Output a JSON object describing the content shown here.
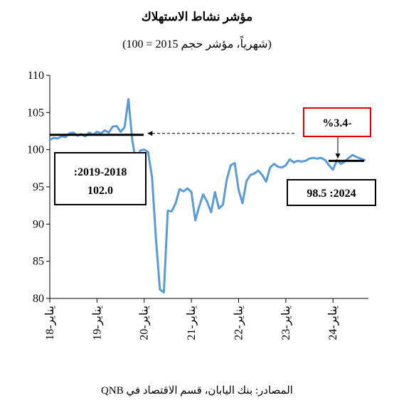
{
  "chart_data": {
    "type": "line",
    "title": "مؤشر نشاط الاستهلاك",
    "subtitle": "(شهرياً، مؤشر حجم 2015 = 100)",
    "source": "المصادر: بنك اليابان، قسم الاقتصاد في QNB",
    "ylim": [
      80,
      110
    ],
    "xlim": [
      2018.0,
      2024.75
    ],
    "y_ticks": [
      "110",
      "105",
      "100",
      "95",
      "90",
      "85",
      "80"
    ],
    "x_ticks": [
      {
        "label": "يناير-18",
        "x": 2018.0
      },
      {
        "label": "يناير-19",
        "x": 2019.0
      },
      {
        "label": "يناير-20",
        "x": 2020.0
      },
      {
        "label": "يناير-21",
        "x": 2021.0
      },
      {
        "label": "يناير-22",
        "x": 2022.0
      },
      {
        "label": "يناير-23",
        "x": 2023.0
      },
      {
        "label": "يناير-24",
        "x": 2024.0
      }
    ],
    "series": [
      {
        "color": "#5b9bd5",
        "x": [
          2018.0,
          2018.083,
          2018.167,
          2018.25,
          2018.333,
          2018.417,
          2018.5,
          2018.583,
          2018.667,
          2018.75,
          2018.833,
          2018.917,
          2019.0,
          2019.083,
          2019.167,
          2019.25,
          2019.333,
          2019.417,
          2019.5,
          2019.583,
          2019.667,
          2019.75,
          2019.833,
          2019.917,
          2020.0,
          2020.083,
          2020.167,
          2020.25,
          2020.333,
          2020.417,
          2020.5,
          2020.583,
          2020.667,
          2020.75,
          2020.833,
          2020.917,
          2021.0,
          2021.083,
          2021.167,
          2021.25,
          2021.333,
          2021.417,
          2021.5,
          2021.583,
          2021.667,
          2021.75,
          2021.833,
          2021.917,
          2022.0,
          2022.083,
          2022.167,
          2022.25,
          2022.333,
          2022.417,
          2022.5,
          2022.583,
          2022.667,
          2022.75,
          2022.833,
          2022.917,
          2023.0,
          2023.083,
          2023.167,
          2023.25,
          2023.333,
          2023.417,
          2023.5,
          2023.583,
          2023.667,
          2023.75,
          2023.833,
          2023.917,
          2024.0,
          2024.083,
          2024.167,
          2024.25,
          2024.333,
          2024.417,
          2024.5,
          2024.583,
          2024.667
        ],
        "y": [
          101.3,
          101.6,
          101.5,
          101.8,
          101.7,
          102.2,
          102.3,
          101.9,
          102.1,
          101.8,
          102.3,
          102.0,
          102.4,
          102.2,
          102.6,
          102.3,
          103.1,
          103.2,
          102.4,
          103.0,
          106.8,
          101.2,
          98.0,
          99.9,
          100.0,
          99.7,
          96.3,
          88.0,
          81.2,
          80.8,
          91.8,
          91.7,
          92.8,
          94.7,
          94.4,
          94.8,
          94.3,
          90.5,
          92.4,
          94.0,
          93.0,
          91.6,
          94.3,
          92.1,
          92.6,
          96.0,
          97.9,
          98.2,
          94.6,
          92.8,
          95.8,
          96.6,
          96.8,
          97.2,
          96.6,
          95.7,
          97.6,
          98.1,
          97.7,
          97.6,
          97.9,
          98.7,
          98.3,
          98.5,
          98.4,
          98.5,
          98.8,
          98.9,
          98.8,
          98.9,
          98.6,
          97.9,
          97.3,
          98.6,
          98.1,
          98.4,
          98.9,
          99.3,
          99.0,
          98.8,
          98.6
        ]
      }
    ],
    "annotations": {
      "left_box_line1": ":2019-2018",
      "left_box_line2": "102.0",
      "right_box": "98.5 :2024",
      "change_box": "%3.4-",
      "avg_2018_2019": 102.0,
      "avg_2024": 98.5
    }
  }
}
